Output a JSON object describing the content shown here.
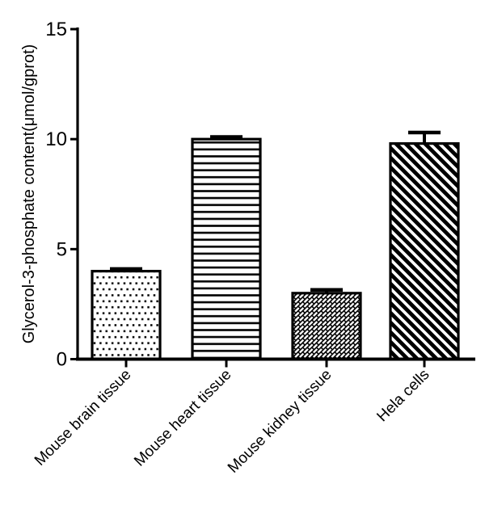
{
  "figure": {
    "background": "#ffffff",
    "ink": "#000000"
  },
  "chart_data": {
    "type": "bar",
    "title": "",
    "ylabel": "Glycerol-3-phosphate content(μmol/gprot)",
    "xlabel": "",
    "categories": [
      "Mouse brain tissue",
      "Mouse heart tissue",
      "Mouse kidney tissue",
      "Hela cells"
    ],
    "values": [
      4.0,
      10.0,
      3.0,
      9.8
    ],
    "errors": [
      0.1,
      0.1,
      0.15,
      0.5
    ],
    "error_bar_style": "upper cap only",
    "yticks": [
      0,
      5,
      10,
      15
    ],
    "ytick_labels": [
      "0",
      "5",
      "10",
      "15"
    ],
    "ylim": [
      0,
      15
    ],
    "bar_patterns": [
      "dots",
      "horizontal-lines",
      "diagonal-bricks",
      "diagonal-stripes"
    ],
    "bar_fill": "#ffffff",
    "bar_stroke": "#000000",
    "grid": false,
    "legend": "none",
    "x_label_rotation_deg": 45
  }
}
